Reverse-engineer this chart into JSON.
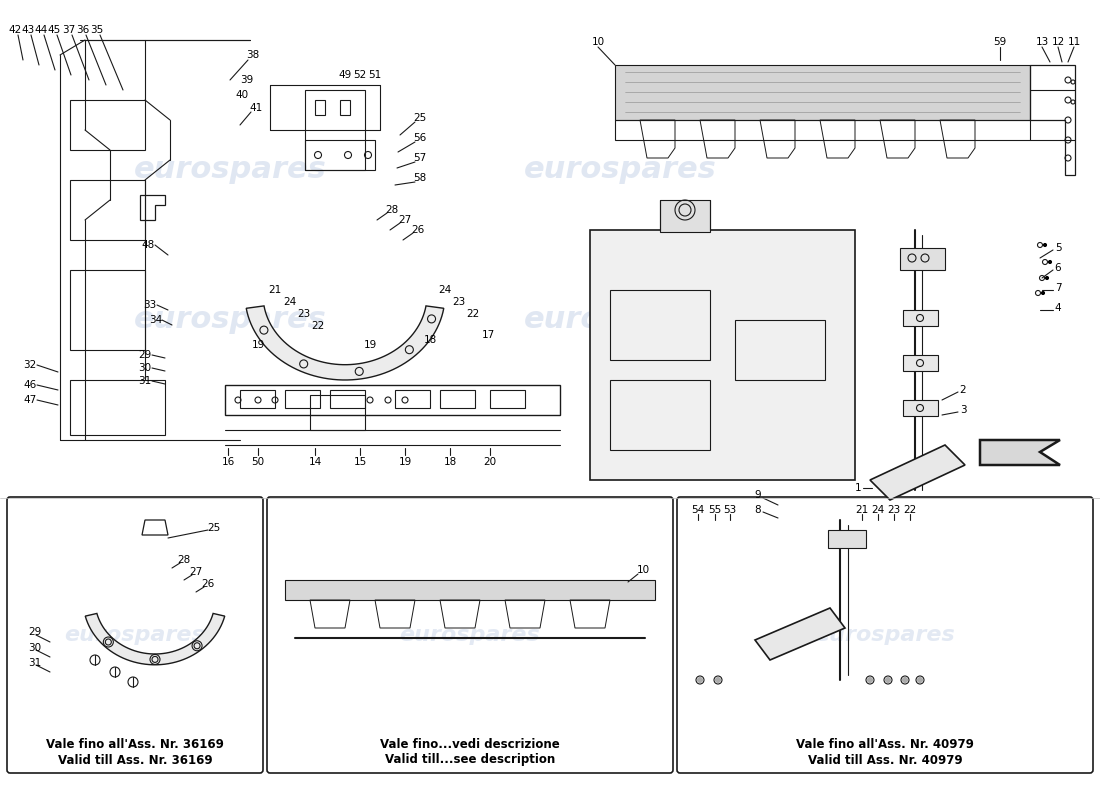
{
  "background_color": "#ffffff",
  "watermark_text": "eurospares",
  "watermark_color": "#c8d4e8",
  "box1_label_line1": "Vale fino all'Ass. Nr. 36169",
  "box1_label_line2": "Valid till Ass. Nr. 36169",
  "box2_label_line1": "Vale fino...vedi descrizione",
  "box2_label_line2": "Valid till...see description",
  "box3_label_line1": "Vale fino all'Ass. Nr. 40979",
  "box3_label_line2": "Valid till Ass. Nr. 40979"
}
